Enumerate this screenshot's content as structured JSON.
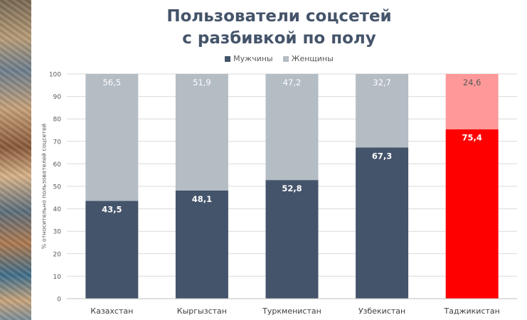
{
  "chart_data": {
    "type": "bar",
    "stacked": true,
    "title_lines": [
      "Пользователи соцсетей",
      "с разбивкой по полу"
    ],
    "ylabel": "% относительно пользователей соцсетей",
    "ylim": [
      0,
      100
    ],
    "yticks": [
      "0",
      "10",
      "20",
      "30",
      "40",
      "50",
      "60",
      "70",
      "80",
      "90",
      "100"
    ],
    "grid": true,
    "legend_position": "top",
    "categories": [
      "Казахстан",
      "Кыргызстан",
      "Туркменистан",
      "Узбекистан",
      "Таджикистан"
    ],
    "series": [
      {
        "name": "Мужчины",
        "values": [
          43.5,
          48.1,
          52.8,
          67.3,
          75.4
        ],
        "labels": [
          "43,5",
          "48,1",
          "52,8",
          "67,3",
          "75,4"
        ],
        "color": "#44546a",
        "highlight_color": "#ff0000"
      },
      {
        "name": "Женщины",
        "values": [
          56.5,
          51.9,
          47.2,
          32.7,
          24.6
        ],
        "labels": [
          "56,5",
          "51,9",
          "47,2",
          "32,7",
          "24,6"
        ],
        "color": "#b4bcc4",
        "highlight_color": "#ff9999"
      }
    ],
    "highlight_category": "Таджикистан"
  }
}
